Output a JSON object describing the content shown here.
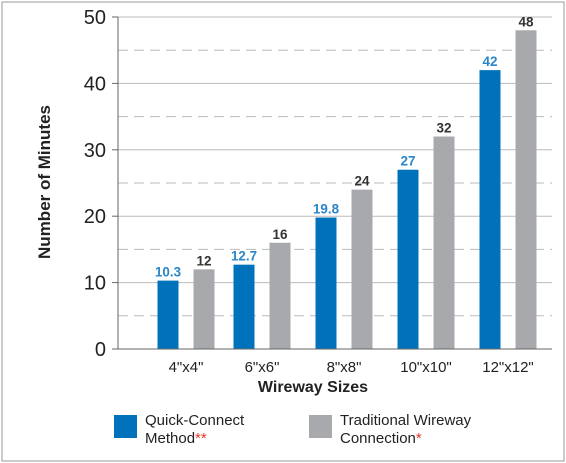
{
  "chart_data": {
    "type": "bar",
    "categories": [
      "4\"x4\"",
      "6\"x6\"",
      "8\"x8\"",
      "10\"x10\"",
      "12\"x12\""
    ],
    "series": [
      {
        "name": "Quick-Connect Method",
        "values": [
          10.3,
          12.7,
          19.8,
          27,
          42
        ],
        "labels": [
          "10.3",
          "12.7",
          "19.8",
          "27",
          "42"
        ],
        "color": "#0072bc"
      },
      {
        "name": "Traditional Wireway Connection",
        "values": [
          12,
          16,
          24,
          32,
          48
        ],
        "labels": [
          "12",
          "16",
          "24",
          "32",
          "48"
        ],
        "color": "#a7a9ac"
      }
    ],
    "xlabel": "Wireway Sizes",
    "ylabel": "Number of Minutes",
    "ylim": [
      0,
      50
    ],
    "yticks": [
      0,
      10,
      20,
      30,
      40,
      50
    ],
    "grid": "dashed",
    "legend_position": "bottom"
  },
  "legend": {
    "items": [
      {
        "line1": "Quick-Connect",
        "line2": "Method",
        "stars": "**",
        "color": "#0072bc"
      },
      {
        "line1": "Traditional Wireway",
        "line2": "Connection",
        "stars": "*",
        "color": "#a7a9ac"
      }
    ]
  },
  "colors": {
    "value_label_blue": "#2a86c8",
    "value_label_gray": "#333333",
    "grid": "#bbbbbb",
    "frame": "#999999"
  }
}
